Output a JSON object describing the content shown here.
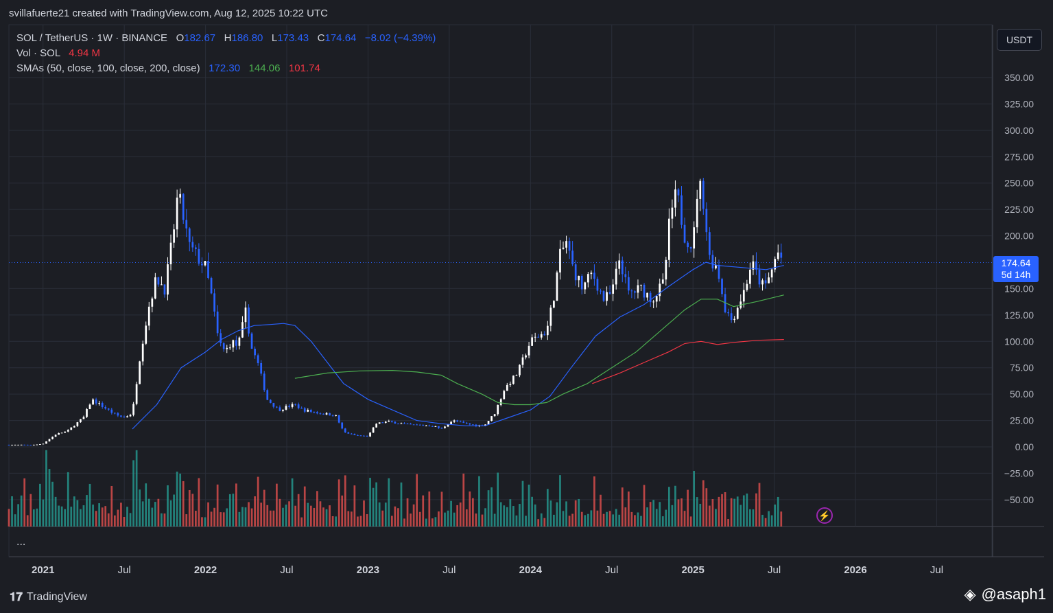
{
  "header": {
    "author_line": "svillafuerte21 created with TradingView.com, Aug 12, 2025 10:22 UTC"
  },
  "legend": {
    "symbol": "SOL / TetherUS · 1W · BINANCE",
    "o_label": "O",
    "o_value": "182.67",
    "h_label": "H",
    "h_value": "186.80",
    "l_label": "L",
    "l_value": "173.43",
    "c_label": "C",
    "c_value": "174.64",
    "change": "−8.02 (−4.39%)",
    "vol_label": "Vol · SOL",
    "vol_value": "4.94 M",
    "sma_label": "SMAs (50, close, 100, close, 200, close)",
    "sma50_value": "172.30",
    "sma100_value": "144.06",
    "sma200_value": "101.74"
  },
  "price_scale": {
    "unit": "USDT",
    "current_price": "174.64",
    "countdown": "5d 14h"
  },
  "footer": {
    "brand": "TradingView",
    "watermark": "@asaph1",
    "more": "..."
  },
  "colors": {
    "background": "#1c1e24",
    "grid": "#2a2e39",
    "candle_up": "#ffffff",
    "candle_down": "#2962ff",
    "sma50": "#2962ff",
    "sma100": "#4caf50",
    "sma200": "#f23645",
    "volume_up": "#26a69a",
    "volume_down": "#ef5350"
  },
  "chart_data": {
    "type": "candlestick",
    "title": "SOL / TetherUS · 1W · BINANCE",
    "y_ticks": [
      "350.00",
      "325.00",
      "300.00",
      "275.00",
      "250.00",
      "225.00",
      "200.00",
      "150.00",
      "125.00",
      "100.00",
      "75.00",
      "50.00",
      "25.00",
      "0.00",
      "−25.00",
      "−50.00"
    ],
    "y_range": [
      -75,
      375
    ],
    "x_ticks": [
      {
        "label": "2021",
        "t": 2021.0
      },
      {
        "label": "Jul",
        "t": 2021.5
      },
      {
        "label": "2022",
        "t": 2022.0
      },
      {
        "label": "Jul",
        "t": 2022.5
      },
      {
        "label": "2023",
        "t": 2023.0
      },
      {
        "label": "Jul",
        "t": 2023.5
      },
      {
        "label": "2024",
        "t": 2024.0
      },
      {
        "label": "Jul",
        "t": 2024.5
      },
      {
        "label": "2025",
        "t": 2025.0
      },
      {
        "label": "Jul",
        "t": 2025.5
      },
      {
        "label": "2026",
        "t": 2026.0
      },
      {
        "label": "Jul",
        "t": 2026.5
      }
    ],
    "x_range": [
      2020.79,
      2026.84
    ],
    "price_keypoints": [
      [
        2020.79,
        2
      ],
      [
        2020.95,
        2
      ],
      [
        2021.0,
        3
      ],
      [
        2021.08,
        12
      ],
      [
        2021.15,
        15
      ],
      [
        2021.25,
        28
      ],
      [
        2021.3,
        45
      ],
      [
        2021.35,
        40
      ],
      [
        2021.4,
        35
      ],
      [
        2021.45,
        30
      ],
      [
        2021.5,
        28
      ],
      [
        2021.55,
        32
      ],
      [
        2021.6,
        90
      ],
      [
        2021.66,
        140
      ],
      [
        2021.7,
        160
      ],
      [
        2021.75,
        150
      ],
      [
        2021.8,
        200
      ],
      [
        2021.83,
        240
      ],
      [
        2021.86,
        220
      ],
      [
        2021.9,
        190
      ],
      [
        2021.95,
        180
      ],
      [
        2022.0,
        170
      ],
      [
        2022.04,
        140
      ],
      [
        2022.08,
        100
      ],
      [
        2022.12,
        90
      ],
      [
        2022.16,
        100
      ],
      [
        2022.2,
        95
      ],
      [
        2022.25,
        130
      ],
      [
        2022.28,
        95
      ],
      [
        2022.32,
        80
      ],
      [
        2022.38,
        45
      ],
      [
        2022.45,
        35
      ],
      [
        2022.5,
        38
      ],
      [
        2022.55,
        40
      ],
      [
        2022.6,
        35
      ],
      [
        2022.7,
        32
      ],
      [
        2022.8,
        30
      ],
      [
        2022.85,
        14
      ],
      [
        2022.92,
        11
      ],
      [
        2023.0,
        10
      ],
      [
        2023.05,
        22
      ],
      [
        2023.12,
        24
      ],
      [
        2023.25,
        21
      ],
      [
        2023.4,
        20
      ],
      [
        2023.45,
        17
      ],
      [
        2023.52,
        25
      ],
      [
        2023.6,
        22
      ],
      [
        2023.68,
        20
      ],
      [
        2023.72,
        21
      ],
      [
        2023.78,
        32
      ],
      [
        2023.84,
        55
      ],
      [
        2023.92,
        70
      ],
      [
        2024.0,
        100
      ],
      [
        2024.05,
        105
      ],
      [
        2024.1,
        110
      ],
      [
        2024.14,
        140
      ],
      [
        2024.18,
        180
      ],
      [
        2024.22,
        195
      ],
      [
        2024.26,
        170
      ],
      [
        2024.32,
        150
      ],
      [
        2024.38,
        165
      ],
      [
        2024.45,
        140
      ],
      [
        2024.5,
        145
      ],
      [
        2024.55,
        180
      ],
      [
        2024.6,
        145
      ],
      [
        2024.68,
        150
      ],
      [
        2024.75,
        140
      ],
      [
        2024.82,
        155
      ],
      [
        2024.86,
        220
      ],
      [
        2024.9,
        240
      ],
      [
        2024.95,
        200
      ],
      [
        2025.0,
        190
      ],
      [
        2025.03,
        250
      ],
      [
        2025.06,
        240
      ],
      [
        2025.1,
        180
      ],
      [
        2025.15,
        170
      ],
      [
        2025.2,
        130
      ],
      [
        2025.24,
        120
      ],
      [
        2025.28,
        135
      ],
      [
        2025.32,
        150
      ],
      [
        2025.36,
        175
      ],
      [
        2025.4,
        160
      ],
      [
        2025.44,
        150
      ],
      [
        2025.48,
        165
      ],
      [
        2025.52,
        185
      ],
      [
        2025.56,
        175
      ]
    ],
    "series": [
      {
        "name": "SMA 50",
        "value": "172.30",
        "points": [
          [
            2021.55,
            17
          ],
          [
            2021.7,
            40
          ],
          [
            2021.85,
            75
          ],
          [
            2022.0,
            90
          ],
          [
            2022.1,
            102
          ],
          [
            2022.2,
            110
          ],
          [
            2022.3,
            115
          ],
          [
            2022.4,
            116
          ],
          [
            2022.48,
            117
          ],
          [
            2022.55,
            115
          ],
          [
            2022.65,
            100
          ],
          [
            2022.75,
            80
          ],
          [
            2022.85,
            60
          ],
          [
            2023.0,
            45
          ],
          [
            2023.15,
            35
          ],
          [
            2023.3,
            25
          ],
          [
            2023.45,
            22
          ],
          [
            2023.6,
            20
          ],
          [
            2023.72,
            20
          ],
          [
            2023.85,
            27
          ],
          [
            2024.0,
            35
          ],
          [
            2024.12,
            48
          ],
          [
            2024.25,
            75
          ],
          [
            2024.4,
            105
          ],
          [
            2024.55,
            123
          ],
          [
            2024.7,
            135
          ],
          [
            2024.85,
            152
          ],
          [
            2025.0,
            168
          ],
          [
            2025.08,
            175
          ],
          [
            2025.15,
            172
          ],
          [
            2025.3,
            170
          ],
          [
            2025.45,
            168
          ],
          [
            2025.56,
            172
          ]
        ]
      },
      {
        "name": "SMA 100",
        "value": "144.06",
        "points": [
          [
            2022.55,
            65
          ],
          [
            2022.75,
            70
          ],
          [
            2022.95,
            72
          ],
          [
            2023.15,
            72.5
          ],
          [
            2023.3,
            71
          ],
          [
            2023.45,
            68
          ],
          [
            2023.55,
            60
          ],
          [
            2023.7,
            50
          ],
          [
            2023.8,
            42
          ],
          [
            2023.9,
            40
          ],
          [
            2024.0,
            40
          ],
          [
            2024.1,
            42
          ],
          [
            2024.2,
            50
          ],
          [
            2024.35,
            60
          ],
          [
            2024.5,
            75
          ],
          [
            2024.65,
            90
          ],
          [
            2024.8,
            110
          ],
          [
            2024.95,
            130
          ],
          [
            2025.05,
            140
          ],
          [
            2025.15,
            140
          ],
          [
            2025.25,
            133
          ],
          [
            2025.4,
            138
          ],
          [
            2025.56,
            144
          ]
        ]
      },
      {
        "name": "SMA 200",
        "value": "101.74",
        "points": [
          [
            2024.38,
            60
          ],
          [
            2024.55,
            70
          ],
          [
            2024.7,
            80
          ],
          [
            2024.85,
            90
          ],
          [
            2024.95,
            98
          ],
          [
            2025.05,
            100
          ],
          [
            2025.15,
            97
          ],
          [
            2025.25,
            99
          ],
          [
            2025.4,
            101
          ],
          [
            2025.56,
            101.74
          ]
        ]
      }
    ]
  }
}
